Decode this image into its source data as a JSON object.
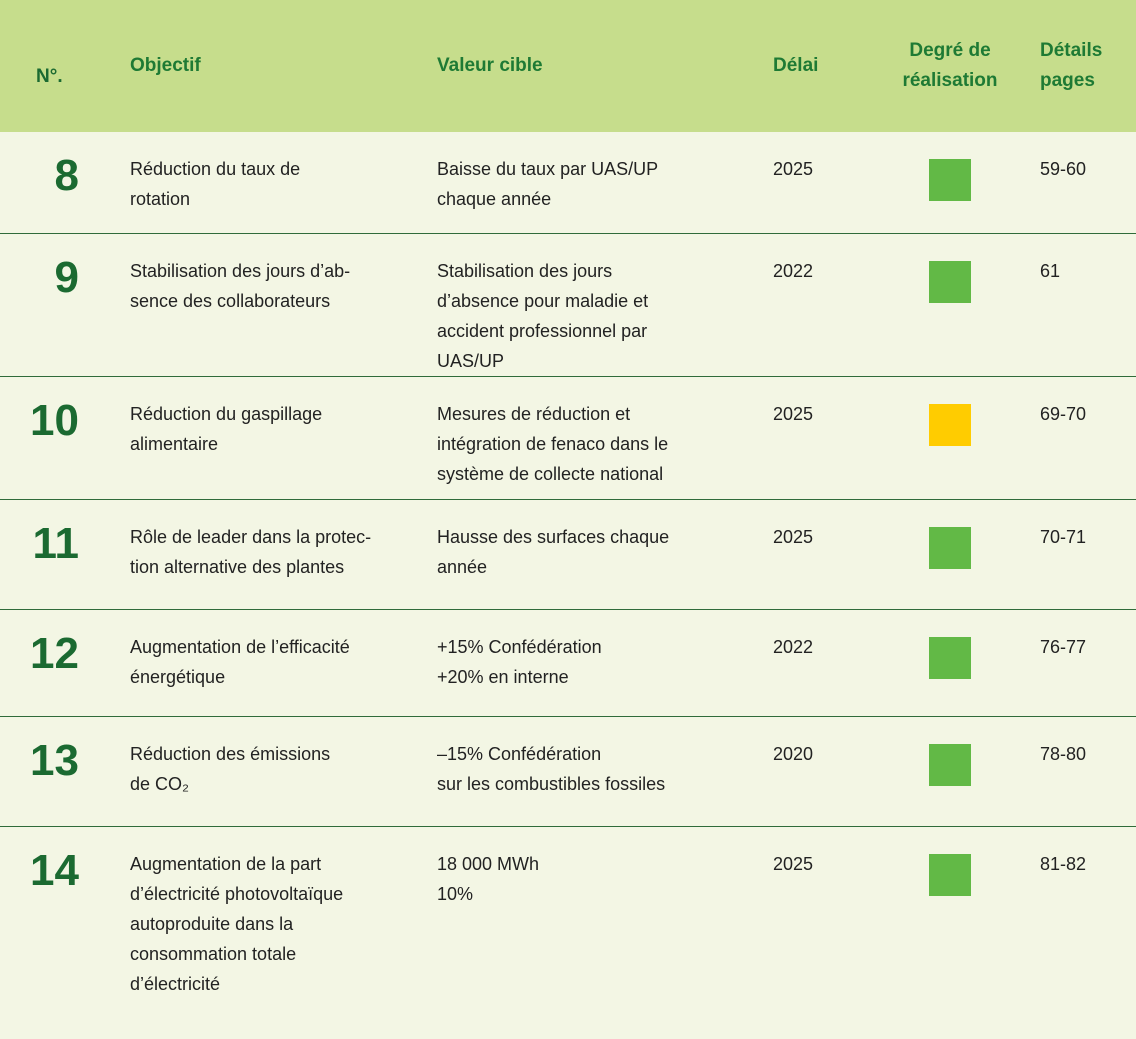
{
  "table": {
    "header": [
      "N°.",
      "Objectif",
      "Valeur cible",
      "Délai",
      "Degré de\nréalisation",
      "Détails\npages"
    ],
    "rows": [
      {
        "number": "8",
        "objective": "Réduction du taux de\nrotation",
        "target": "Baisse du taux par UAS/UP\nchaque année",
        "deadline": "2025",
        "status_color": "#62b946",
        "pages": "59-60"
      },
      {
        "number": "9",
        "objective": "Stabilisation des jours d’ab-\nsence des collaborateurs",
        "target": "Stabilisation des jours\nd’absence pour maladie et\naccident professionnel par\nUAS/UP",
        "deadline": "2022",
        "status_color": "#62b946",
        "pages": "61"
      },
      {
        "number": "10",
        "objective": "Réduction du gaspillage\nalimentaire",
        "target": "Mesures de réduction et\nintégration de fenaco dans le\nsystème de collecte national",
        "deadline": "2025",
        "status_color": "#ffcc00",
        "pages": "69-70"
      },
      {
        "number": "11",
        "objective": "Rôle de leader dans la protec-\ntion alternative des plantes",
        "target": "Hausse des surfaces chaque\nannée",
        "deadline": "2025",
        "status_color": "#62b946",
        "pages": "70-71"
      },
      {
        "number": "12",
        "objective": "Augmentation de l’efficacité\nénergétique",
        "target": "+15% Confédération\n+20% en interne",
        "deadline": "2022",
        "status_color": "#62b946",
        "pages": "76-77"
      },
      {
        "number": "13",
        "objective": "Réduction des émissions\nde CO₂",
        "target": "–15% Confédération\nsur les combustibles fossiles",
        "deadline": "2020",
        "status_color": "#62b946",
        "pages": "78-80"
      },
      {
        "number": "14",
        "objective": "Augmentation de la part\nd’électricité photovoltaïque\nautoproduite dans la\nconsommation totale\nd’électricité",
        "target": "18 000 MWh\n10%",
        "deadline": "2025",
        "status_color": "#62b946",
        "pages": "81-82"
      }
    ]
  }
}
